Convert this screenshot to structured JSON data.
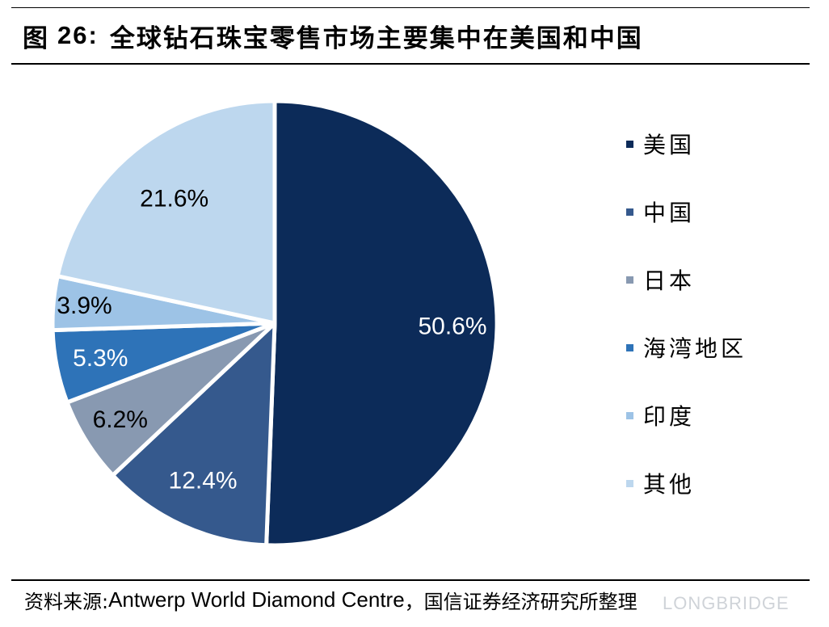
{
  "title": {
    "prefix": "图",
    "number": "26:",
    "text": "全球钻石珠宝零售市场主要集中在美国和中国"
  },
  "chart_data": {
    "type": "pie",
    "title": "",
    "start_angle_deg": 0,
    "direction": "clockwise",
    "series": [
      {
        "name": "美国",
        "value": 50.6,
        "label": "50.6%",
        "color": "#0c2b59",
        "label_color": "#ffffff"
      },
      {
        "name": "中国",
        "value": 12.4,
        "label": "12.4%",
        "color": "#35598d",
        "label_color": "#ffffff"
      },
      {
        "name": "日本",
        "value": 6.2,
        "label": "6.2%",
        "color": "#8899b1",
        "label_color": "#000000"
      },
      {
        "name": "海湾地区",
        "value": 5.3,
        "label": "5.3%",
        "color": "#2e73b8",
        "label_color": "#ffffff"
      },
      {
        "name": "印度",
        "value": 3.9,
        "label": "3.9%",
        "color": "#9dc3e6",
        "label_color": "#000000"
      },
      {
        "name": "其他",
        "value": 21.6,
        "label": "21.6%",
        "color": "#bdd7ee",
        "label_color": "#000000"
      }
    ],
    "legend_position": "right"
  },
  "source": {
    "prefix": "资料来源:",
    "org": " Antwerp World Diamond Centre",
    "suffix": "，国信证券经济研究所整理"
  },
  "watermark": "LONGBRIDGE"
}
